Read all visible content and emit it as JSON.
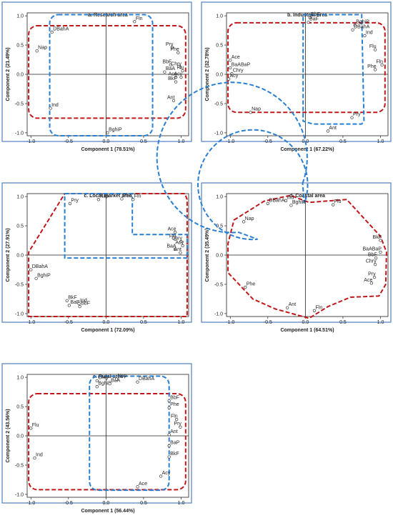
{
  "chart_data": [
    {
      "type": "scatter",
      "title": "a. Research area",
      "xlabel": "Component 1 (78.51%)",
      "ylabel": "Component 2 (21.49%)",
      "xlim": [
        -1.05,
        1.1
      ],
      "ylim": [
        -1.05,
        1.05
      ],
      "xticks": [
        -1.0,
        -0.5,
        0.0,
        0.5,
        1.0
      ],
      "yticks": [
        -1.0,
        -0.5,
        0.0,
        0.5,
        1.0
      ],
      "tick_labels_x": [
        "-1.0",
        "-0.5",
        "0.0",
        "0.5",
        "1.0"
      ],
      "tick_labels_y": [
        "-1.0",
        "-0.5",
        "0.0",
        "0.5",
        "1.0"
      ],
      "points": [
        {
          "label": "DBahA",
          "x": -0.72,
          "y": 0.72
        },
        {
          "label": "Nap",
          "x": -0.92,
          "y": 0.4
        },
        {
          "label": "Ind",
          "x": -0.74,
          "y": -0.58
        },
        {
          "label": "Fln",
          "x": 0.38,
          "y": 0.9
        },
        {
          "label": "Pry",
          "x": 0.88,
          "y": 0.46
        },
        {
          "label": "Phe",
          "x": 0.96,
          "y": 0.37
        },
        {
          "label": "BbF",
          "x": 0.86,
          "y": 0.16
        },
        {
          "label": "Chry",
          "x": 0.99,
          "y": 0.12
        },
        {
          "label": "Flu",
          "x": 1.02,
          "y": 0.06
        },
        {
          "label": "BaA",
          "x": 0.78,
          "y": 0.04
        },
        {
          "label": "Ace",
          "x": 0.93,
          "y": -0.05
        },
        {
          "label": "Acy",
          "x": 1.0,
          "y": -0.05
        },
        {
          "label": "BkF",
          "x": 0.93,
          "y": -0.13
        },
        {
          "label": "Ant",
          "x": 0.9,
          "y": -0.45
        },
        {
          "label": "BghiP",
          "x": 0.02,
          "y": -1.0
        }
      ]
    },
    {
      "type": "scatter",
      "title": "b. Industrial area",
      "xlabel": "Component 1 (67.22%)",
      "ylabel": "Component 2 (32.78%)",
      "xlim": [
        -1.05,
        1.1
      ],
      "ylim": [
        -1.05,
        1.05
      ],
      "xticks": [
        -1.0,
        -0.5,
        0.0,
        0.5,
        1.0
      ],
      "yticks": [
        -1.0,
        -0.5,
        0.0,
        0.5,
        1.0
      ],
      "tick_labels_x": [
        "-1.0",
        "-0.5",
        "0.0",
        "0.5",
        "1.0"
      ],
      "tick_labels_y": [
        "-1.0",
        "-0.5",
        "0.0",
        "0.5",
        "1.0"
      ],
      "points": [
        {
          "label": "BbF",
          "x": 0.06,
          "y": 0.97
        },
        {
          "label": "BaF",
          "x": 0.04,
          "y": 0.89
        },
        {
          "label": "BghiP",
          "x": 0.66,
          "y": 0.84
        },
        {
          "label": "DBahA",
          "x": 0.63,
          "y": 0.76
        },
        {
          "label": "Ind",
          "x": 0.79,
          "y": 0.66
        },
        {
          "label": "Flu",
          "x": 0.93,
          "y": 0.42
        },
        {
          "label": "Fln",
          "x": 1.02,
          "y": 0.16
        },
        {
          "label": "Phe",
          "x": 0.93,
          "y": 0.08
        },
        {
          "label": "Ace",
          "x": -1.0,
          "y": 0.24
        },
        {
          "label": "BaABaP",
          "x": -1.0,
          "y": 0.11
        },
        {
          "label": "Chry",
          "x": -0.98,
          "y": 0.01
        },
        {
          "label": "Acy",
          "x": -1.02,
          "y": -0.08
        },
        {
          "label": "Nap",
          "x": -0.73,
          "y": -0.65
        },
        {
          "label": "Pry",
          "x": 0.62,
          "y": -0.74
        },
        {
          "label": "Ant",
          "x": 0.3,
          "y": -0.97
        }
      ]
    },
    {
      "type": "scatter",
      "title": "c. Local market area",
      "xlabel": "Component 1 (72.09%)",
      "ylabel": "Component 2 (27.91%)",
      "xlim": [
        -1.05,
        1.1
      ],
      "ylim": [
        -1.05,
        1.05
      ],
      "xticks": [
        -1.0,
        -0.5,
        0.0,
        0.5,
        1.0
      ],
      "yticks": [
        -1.0,
        -0.5,
        0.0,
        0.5,
        1.0
      ],
      "tick_labels_x": [
        "-1.0",
        "-0.5",
        "0.0",
        "0.5",
        "1.0"
      ],
      "tick_labels_y": [
        "-1.0",
        "-0.5",
        "0.0",
        "0.5",
        "1.0"
      ],
      "points": [
        {
          "label": "Pry",
          "x": -0.48,
          "y": 0.88
        },
        {
          "label": "Nap",
          "x": -0.1,
          "y": 0.95
        },
        {
          "label": "Phe",
          "x": 0.21,
          "y": 0.96
        },
        {
          "label": "Fln",
          "x": 0.36,
          "y": 0.95
        },
        {
          "label": "Ace",
          "x": 0.92,
          "y": 0.39
        },
        {
          "label": "Flu",
          "x": 0.92,
          "y": 0.27
        },
        {
          "label": "Chry",
          "x": 1.0,
          "y": 0.23
        },
        {
          "label": "Acy",
          "x": 1.02,
          "y": 0.16
        },
        {
          "label": "BaA",
          "x": 0.92,
          "y": 0.1
        },
        {
          "label": "Ant",
          "x": 0.99,
          "y": 0.04
        },
        {
          "label": "DBahA",
          "x": -1.0,
          "y": -0.25
        },
        {
          "label": "BghiP",
          "x": -0.93,
          "y": -0.4
        },
        {
          "label": "BkF",
          "x": -0.52,
          "y": -0.78
        },
        {
          "label": "Ind",
          "x": -0.36,
          "y": -0.83
        },
        {
          "label": "BaP",
          "x": -0.49,
          "y": -0.86
        },
        {
          "label": "BbF",
          "x": -0.35,
          "y": -0.88
        }
      ]
    },
    {
      "type": "scatter",
      "title": "d. Coastal area",
      "xlabel": "Component 1 (64.51%)",
      "ylabel": "Component 2 (35.49%)",
      "xlim": [
        -1.05,
        1.1
      ],
      "ylim": [
        -1.05,
        1.05
      ],
      "xticks": [
        -1.0,
        -0.5,
        0.0,
        0.5,
        1.0
      ],
      "yticks": [
        -1.0,
        -0.5,
        0.0,
        0.5,
        1.0
      ],
      "tick_labels_x": [
        "-1.0",
        "-0.5",
        "0.0",
        "0.5",
        "1.0"
      ],
      "tick_labels_y": [
        "-1.0",
        "-0.5",
        "0.0",
        "0.5",
        "1.0"
      ],
      "points": [
        {
          "label": "DBahA",
          "x": -0.5,
          "y": 0.88
        },
        {
          "label": "Ind",
          "x": -0.26,
          "y": 0.93
        },
        {
          "label": "BghiP",
          "x": -0.19,
          "y": 0.85
        },
        {
          "label": "Flu",
          "x": 0.37,
          "y": 0.86
        },
        {
          "label": "Nap",
          "x": -0.82,
          "y": 0.57
        },
        {
          "label": "BkF",
          "x": 1.0,
          "y": 0.25
        },
        {
          "label": "BaABaP",
          "x": 1.0,
          "y": 0.05
        },
        {
          "label": "BbF",
          "x": 0.94,
          "y": -0.05
        },
        {
          "label": "Chry",
          "x": 0.93,
          "y": -0.16
        },
        {
          "label": "Pry",
          "x": 0.92,
          "y": -0.38
        },
        {
          "label": "Ace",
          "x": 0.88,
          "y": -0.48
        },
        {
          "label": "Phe",
          "x": -0.8,
          "y": -0.55
        },
        {
          "label": "Ant",
          "x": -0.24,
          "y": -0.9
        },
        {
          "label": "Fln",
          "x": 0.12,
          "y": -0.95
        }
      ]
    },
    {
      "type": "scatter",
      "title": "e. Rural area",
      "xlabel": "Component 1 (56.44%)",
      "ylabel": "Component 2 (43.56%)",
      "xlim": [
        -1.05,
        1.1
      ],
      "ylim": [
        -1.05,
        1.05
      ],
      "xticks": [
        -1.0,
        -0.5,
        0.0,
        0.5,
        1.0
      ],
      "yticks": [
        -1.0,
        -0.5,
        0.0,
        0.5,
        1.0
      ],
      "tick_labels_x": [
        "-1.0",
        "-0.5",
        "0.0",
        "0.5",
        "1.0"
      ],
      "tick_labels_y": [
        "-1.0",
        "-0.5",
        "0.0",
        "0.5",
        "1.0"
      ],
      "points": [
        {
          "label": "Chry",
          "x": -0.12,
          "y": 0.94
        },
        {
          "label": "BghiP",
          "x": -0.12,
          "y": 0.84
        },
        {
          "label": "BaA",
          "x": 0.05,
          "y": 0.89
        },
        {
          "label": "Nap",
          "x": 0.14,
          "y": 0.97
        },
        {
          "label": "DBahA",
          "x": 0.42,
          "y": 0.92
        },
        {
          "label": "BbF",
          "x": 0.84,
          "y": 0.6
        },
        {
          "label": "Phe",
          "x": 0.84,
          "y": 0.48
        },
        {
          "label": "Fln",
          "x": 0.94,
          "y": 0.28
        },
        {
          "label": "Pry",
          "x": 0.99,
          "y": 0.15
        },
        {
          "label": "Ant",
          "x": 0.84,
          "y": 0.02
        },
        {
          "label": "BaP",
          "x": 0.84,
          "y": -0.17
        },
        {
          "label": "BkF",
          "x": 0.84,
          "y": -0.36
        },
        {
          "label": "Acy",
          "x": 0.73,
          "y": -0.69
        },
        {
          "label": "Ace",
          "x": 0.42,
          "y": -0.87
        },
        {
          "label": "Flu",
          "x": -1.0,
          "y": 0.13
        },
        {
          "label": "Ind",
          "x": -0.95,
          "y": -0.38
        }
      ]
    }
  ],
  "colors": {
    "panel_border": "#4f7fc1",
    "outline_red": "#c0191c",
    "outline_blue": "#2a7fd0"
  }
}
